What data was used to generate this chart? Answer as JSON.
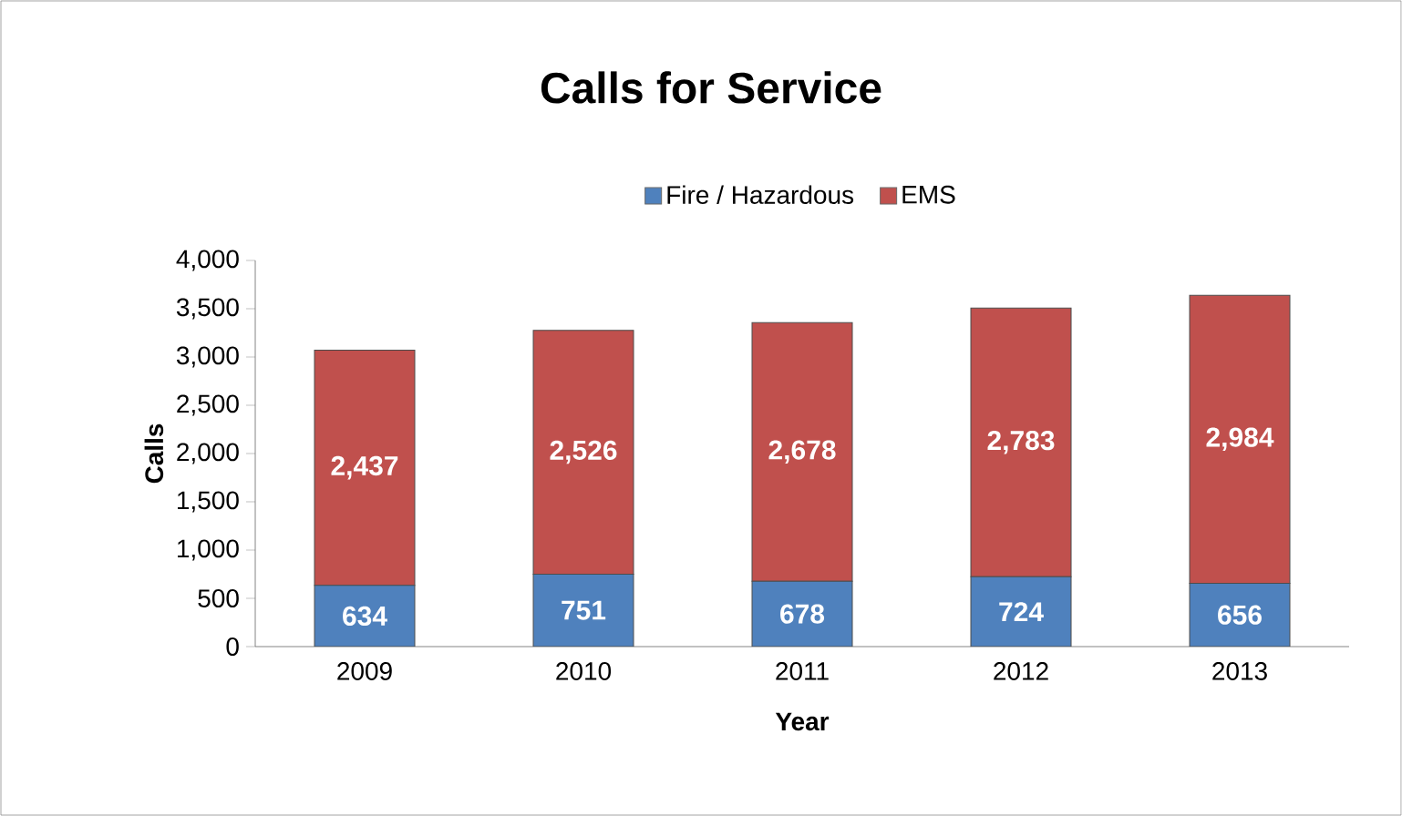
{
  "chart_data": {
    "type": "bar",
    "title": "Calls for Service",
    "xlabel": "Year",
    "ylabel": "Calls",
    "categories": [
      "2009",
      "2010",
      "2011",
      "2012",
      "2013"
    ],
    "series": [
      {
        "name": "Fire / Hazardous",
        "color": "#4f81bd",
        "values": [
          634,
          751,
          678,
          724,
          656
        ],
        "value_labels": [
          "634",
          "751",
          "678",
          "724",
          "656"
        ]
      },
      {
        "name": "EMS",
        "color": "#c0504d",
        "values": [
          2437,
          2526,
          2678,
          2783,
          2984
        ],
        "value_labels": [
          "2,437",
          "2,526",
          "2,678",
          "2,783",
          "2,984"
        ]
      }
    ],
    "stacked": true,
    "legend": "top",
    "ylim": [
      0,
      4000
    ],
    "yticks": [
      0,
      {
        "value": 500,
        "label": "500"
      },
      {
        "value": 1000,
        "label": "1,000"
      },
      {
        "value": 1500,
        "label": "1,500"
      },
      {
        "value": 2000,
        "label": "2,000"
      },
      {
        "value": 2500,
        "label": "2,500"
      },
      {
        "value": 3000,
        "label": "3,000"
      },
      {
        "value": 3500,
        "label": "3,500"
      },
      {
        "value": 4000,
        "label": "4,000"
      }
    ]
  }
}
